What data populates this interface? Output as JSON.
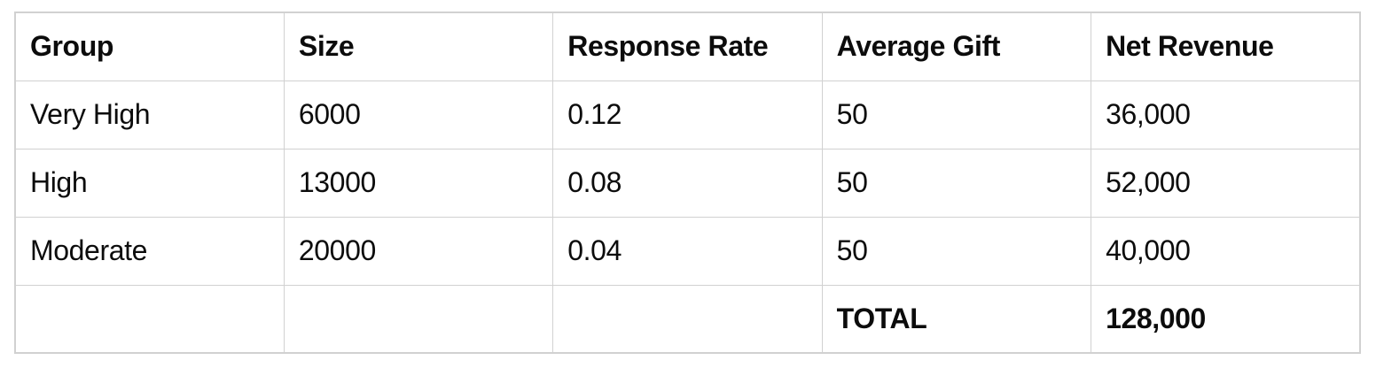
{
  "table": {
    "columns": [
      "Group",
      "Size",
      "Response Rate",
      "Average Gift",
      "Net Revenue"
    ],
    "rows": [
      [
        "Very High",
        "6000",
        "0.12",
        "50",
        "36,000"
      ],
      [
        "High",
        "13000",
        "0.08",
        "50",
        "52,000"
      ],
      [
        "Moderate",
        "20000",
        "0.04",
        "50",
        "40,000"
      ]
    ],
    "total": {
      "label": "TOTAL",
      "value": "128,000"
    }
  },
  "colors": {
    "border": "#d1d1d1",
    "text": "#0c0c0c",
    "background": "#ffffff"
  },
  "chart_data": {
    "type": "table",
    "columns": [
      "Group",
      "Size",
      "Response Rate",
      "Average Gift",
      "Net Revenue"
    ],
    "rows": [
      [
        "Very High",
        6000,
        0.12,
        50,
        36000
      ],
      [
        "High",
        13000,
        0.08,
        50,
        52000
      ],
      [
        "Moderate",
        20000,
        0.04,
        50,
        40000
      ]
    ],
    "total": {
      "net_revenue": 128000,
      "label": "TOTAL"
    },
    "notes": "Net Revenue displayed with thousands separators: 36,000 / 52,000 / 40,000 / 128,000"
  }
}
